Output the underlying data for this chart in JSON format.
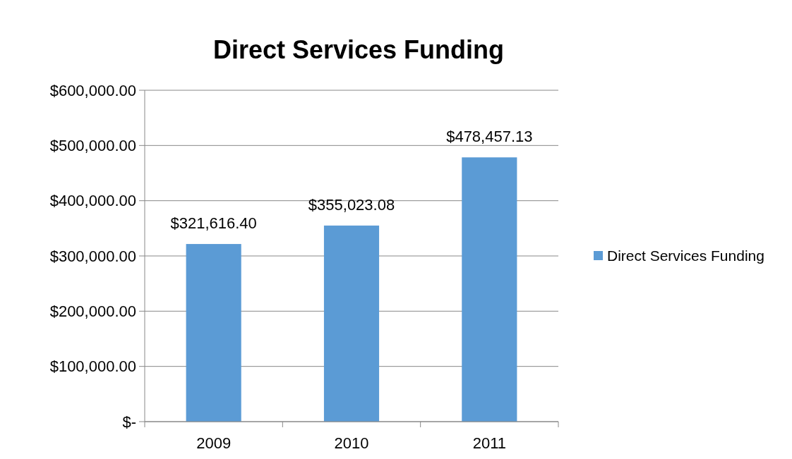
{
  "chart_data": {
    "type": "bar",
    "title": "Direct Services Funding",
    "categories": [
      "2009",
      "2010",
      "2011"
    ],
    "series": [
      {
        "name": "Direct Services Funding",
        "color": "#5b9bd5",
        "values": [
          321616.4,
          355023.08,
          478457.13
        ],
        "value_labels": [
          "$321,616.40",
          "$355,023.08",
          "$478,457.13"
        ]
      }
    ],
    "ylim": [
      0,
      600000
    ],
    "yticks": [
      {
        "value": 0,
        "label": "$-"
      },
      {
        "value": 100000,
        "label": "$100,000.00"
      },
      {
        "value": 200000,
        "label": "$200,000.00"
      },
      {
        "value": 300000,
        "label": "$300,000.00"
      },
      {
        "value": 400000,
        "label": "$400,000.00"
      },
      {
        "value": 500000,
        "label": "$500,000.00"
      },
      {
        "value": 600000,
        "label": "$600,000.00"
      }
    ],
    "grid": "y",
    "legend": "right"
  }
}
